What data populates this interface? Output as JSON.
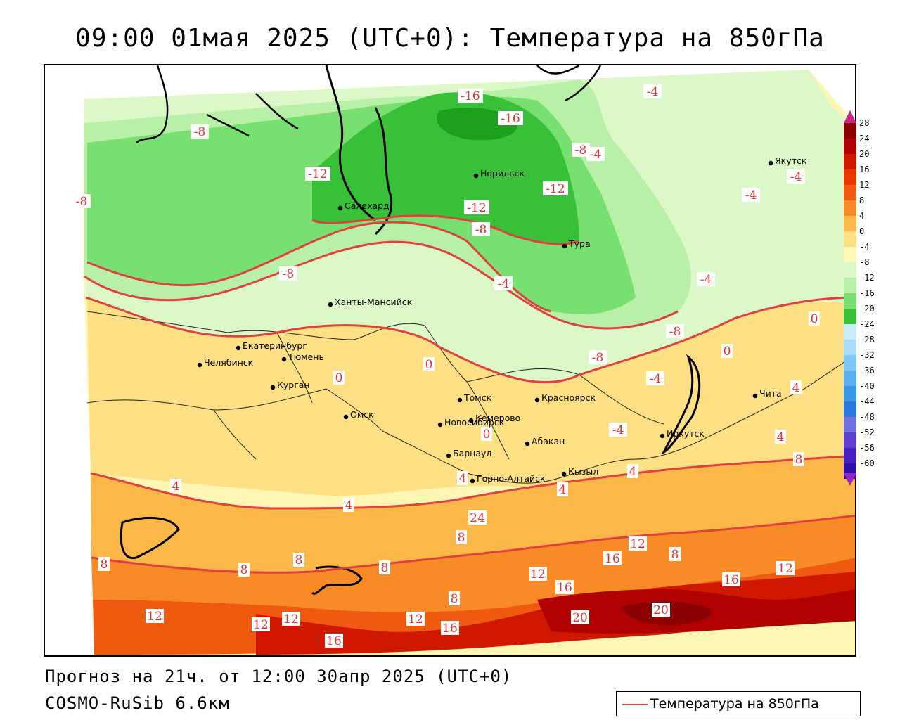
{
  "title": "09:00 01мая 2025 (UTC+0): Температура на 850гПа",
  "footer": {
    "forecast": "Прогноз на 21ч. от 12:00 30апр 2025 (UTC+0)",
    "model": "COSMO-RuSib 6.6км"
  },
  "legend": {
    "label": "Температура на 850гПа",
    "line_color": "#e04040"
  },
  "colorbar": {
    "ticks": [
      "28",
      "24",
      "20",
      "16",
      "12",
      "8",
      "4",
      "0",
      "-4",
      "-8",
      "-12",
      "-16",
      "-20",
      "-24",
      "-28",
      "-32",
      "-36",
      "-40",
      "-44",
      "-48",
      "-52",
      "-56",
      "-60"
    ],
    "colors": [
      "#8b0000",
      "#b00000",
      "#d01800",
      "#e83800",
      "#f05a10",
      "#f88a28",
      "#fbb848",
      "#fde084",
      "#fff8b8",
      "#ddf8c8",
      "#b8f0a8",
      "#78e070",
      "#38c038",
      "#c8ecf8",
      "#a8dcf8",
      "#80c8f8",
      "#58b0f0",
      "#3898e8",
      "#2878e0",
      "#7070e0",
      "#6040d0",
      "#4820c0",
      "#3010a8"
    ],
    "top_arrow_color": "#cc2288",
    "bottom_arrow_color": "#9922cc"
  },
  "cities": [
    {
      "name": "Якутск"
    },
    {
      "name": "Норильск"
    },
    {
      "name": "Салехард"
    },
    {
      "name": "Тура"
    },
    {
      "name": "Ханты-Мансийск"
    },
    {
      "name": "Екатеринбург"
    },
    {
      "name": "Тюмень"
    },
    {
      "name": "Челябинск"
    },
    {
      "name": "Курган"
    },
    {
      "name": "Омск"
    },
    {
      "name": "Новосибирск"
    },
    {
      "name": "Томск"
    },
    {
      "name": "Красноярск"
    },
    {
      "name": "Кемерово"
    },
    {
      "name": "Абакан"
    },
    {
      "name": "Барнаул"
    },
    {
      "name": "Горно-Алтайск"
    },
    {
      "name": "Кызыл"
    },
    {
      "name": "Иркутск"
    },
    {
      "name": "Чита"
    }
  ],
  "contour_labels": [
    "-16",
    "-16",
    "-8",
    "-4",
    "-8",
    "-12",
    "-8",
    "-12",
    "-12",
    "-8",
    "-8",
    "-4",
    "-4",
    "-4",
    "-4",
    "-4",
    "-4",
    "-8",
    "0",
    "0",
    "0",
    "0",
    "0",
    "-4",
    "4",
    "4",
    "4",
    "4",
    "4",
    "8",
    "8",
    "8",
    "8",
    "8",
    "8",
    "8",
    "8",
    "12",
    "12",
    "12",
    "12",
    "12",
    "12",
    "12",
    "16",
    "16",
    "16",
    "16",
    "16",
    "20",
    "20",
    "24",
    "4",
    "4",
    "-8"
  ]
}
